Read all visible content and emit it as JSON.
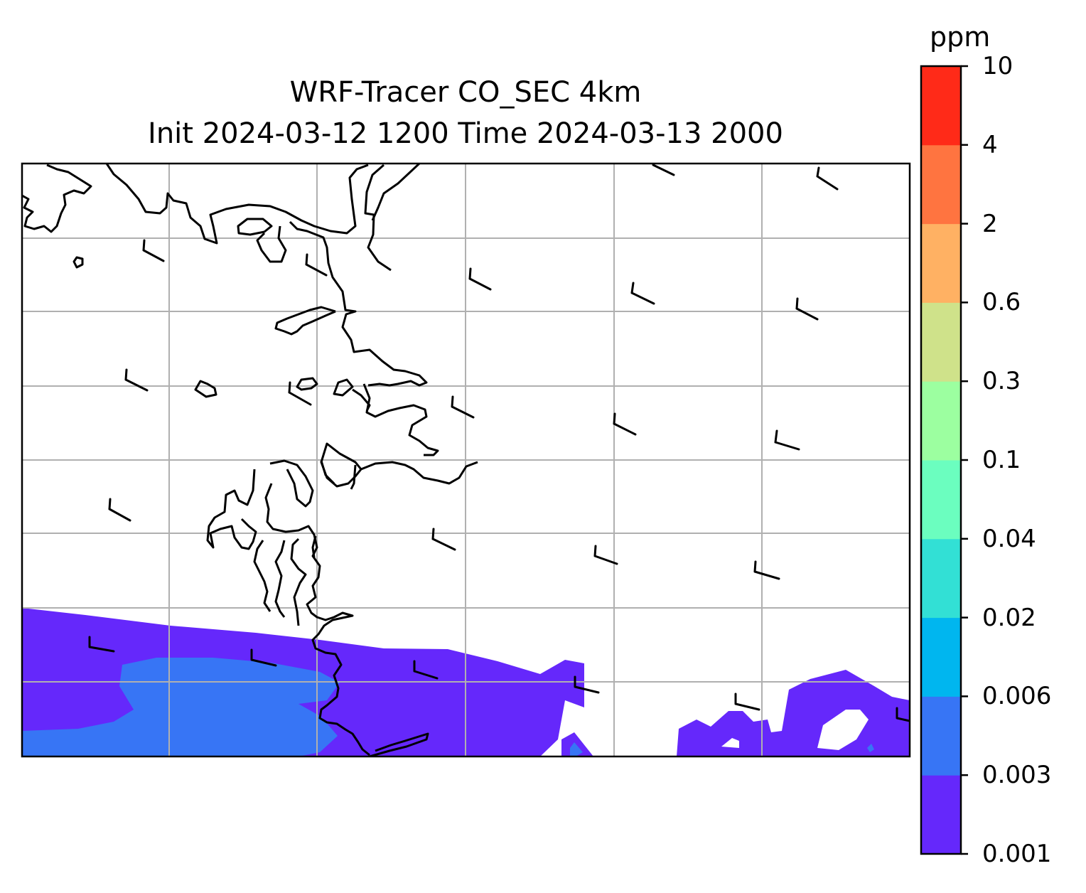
{
  "title": {
    "line1": "WRF-Tracer CO_SEC 4km",
    "line2": "Init 2024-03-12 1200 Time 2024-03-13 2000"
  },
  "colorbar": {
    "unit": "ppm",
    "ticks": [
      "0.001",
      "0.003",
      "0.006",
      "0.02",
      "0.04",
      "0.1",
      "0.3",
      "0.6",
      "2",
      "4",
      "10"
    ],
    "colors": [
      "#6528fb",
      "#3775f5",
      "#00b6ef",
      "#32e0d5",
      "#6bfebf",
      "#9cffa0",
      "#cfe28a",
      "#ffb163",
      "#ff7440",
      "#ff2a18"
    ]
  },
  "map": {
    "gridlines": true,
    "wind_barbs": "present",
    "fill_levels_present": [
      "0.001-0.003",
      "0.003-0.006"
    ]
  }
}
